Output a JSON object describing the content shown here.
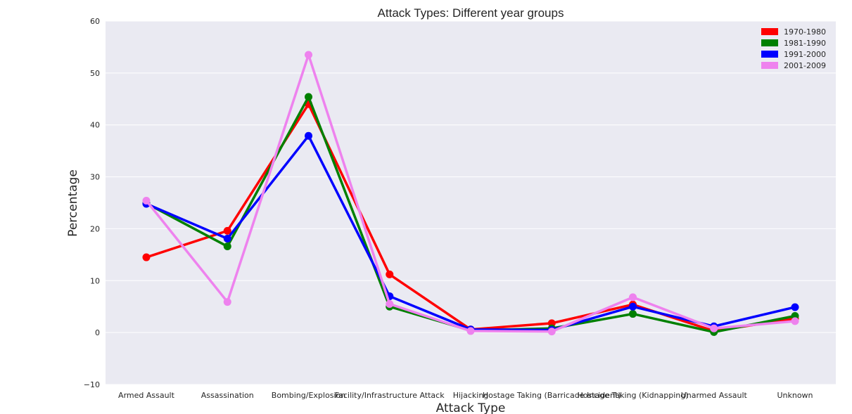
{
  "chart_data": {
    "type": "line",
    "title": "Attack Types: Different year groups",
    "xlabel": "Attack Type",
    "ylabel": "Percentage",
    "ylim": [
      -10,
      60
    ],
    "yticks": [
      -10,
      0,
      10,
      20,
      30,
      40,
      50,
      60
    ],
    "ytick_labels": [
      "−10",
      "0",
      "10",
      "20",
      "30",
      "40",
      "50",
      "60"
    ],
    "grid": true,
    "legend_position": "top-right",
    "markers": true,
    "categories": [
      "Armed Assault",
      "Assassination",
      "Bombing/Explosion",
      "Facility/Infrastructure Attack",
      "Hijacking",
      "Hostage Taking (Barricade Incident)",
      "Hostage Taking (Kidnapping)",
      "Unarmed Assault",
      "Unknown"
    ],
    "series": [
      {
        "name": "1970-1980",
        "color": "#ff0000",
        "values": [
          14.5,
          19.6,
          44.0,
          11.2,
          0.6,
          1.8,
          5.4,
          0.3,
          2.7
        ]
      },
      {
        "name": "1981-1990",
        "color": "#008000",
        "values": [
          24.9,
          16.6,
          45.4,
          5.0,
          0.4,
          0.8,
          3.6,
          0.1,
          3.2
        ]
      },
      {
        "name": "1991-2000",
        "color": "#0000ff",
        "values": [
          24.8,
          18.1,
          37.9,
          7.0,
          0.6,
          0.5,
          5.0,
          1.2,
          4.9
        ]
      },
      {
        "name": "2001-2009",
        "color": "#ee82ee",
        "values": [
          25.4,
          5.9,
          53.5,
          5.5,
          0.3,
          0.2,
          6.8,
          0.8,
          2.2
        ]
      }
    ]
  }
}
